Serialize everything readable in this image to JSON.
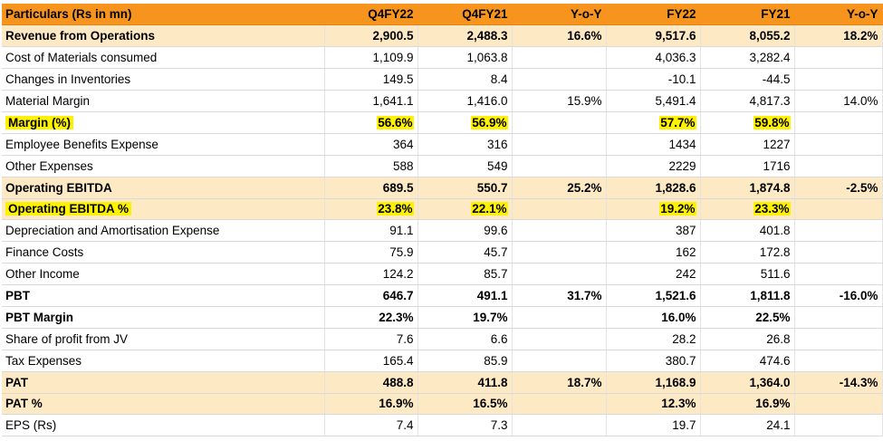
{
  "table": {
    "headers": [
      "Particulars  (Rs in mn)",
      "Q4FY22",
      "Q4FY21",
      "Y-o-Y",
      "FY22",
      "FY21",
      "Y-o-Y"
    ],
    "rows": [
      {
        "label": "Revenue from Operations",
        "cells": [
          "2,900.5",
          "2,488.3",
          "16.6%",
          "9,517.6",
          "8,055.2",
          "18.2%"
        ]
      },
      {
        "label": "Cost of Materials consumed",
        "cells": [
          "1,109.9",
          "1,063.8",
          "",
          "4,036.3",
          "3,282.4",
          ""
        ]
      },
      {
        "label": "Changes in Inventories",
        "cells": [
          "149.5",
          "8.4",
          "",
          "-10.1",
          "-44.5",
          ""
        ]
      },
      {
        "label": "Material Margin",
        "cells": [
          "1,641.1",
          "1,416.0",
          "15.9%",
          "5,491.4",
          "4,817.3",
          "14.0%"
        ]
      },
      {
        "label": "Margin (%)",
        "cells": [
          "56.6%",
          "56.9%",
          "",
          "57.7%",
          "59.8%",
          ""
        ]
      },
      {
        "label": "Employee Benefits Expense",
        "cells": [
          "364",
          "316",
          "",
          "1434",
          "1227",
          ""
        ]
      },
      {
        "label": "Other Expenses",
        "cells": [
          "588",
          "549",
          "",
          "2229",
          "1716",
          ""
        ]
      },
      {
        "label": "Operating EBITDA",
        "cells": [
          "689.5",
          "550.7",
          "25.2%",
          "1,828.6",
          "1,874.8",
          "-2.5%"
        ]
      },
      {
        "label": "Operating EBITDA %",
        "cells": [
          "23.8%",
          "22.1%",
          "",
          "19.2%",
          "23.3%",
          ""
        ]
      },
      {
        "label": "Depreciation and Amortisation Expense",
        "cells": [
          "91.1",
          "99.6",
          "",
          "387",
          "401.8",
          ""
        ]
      },
      {
        "label": "Finance Costs",
        "cells": [
          "75.9",
          "45.7",
          "",
          "162",
          "172.8",
          ""
        ]
      },
      {
        "label": "Other Income",
        "cells": [
          "124.2",
          "85.7",
          "",
          "242",
          "511.6",
          ""
        ]
      },
      {
        "label": "PBT",
        "cells": [
          "646.7",
          "491.1",
          "31.7%",
          "1,521.6",
          "1,811.8",
          "-16.0%"
        ]
      },
      {
        "label": "PBT Margin",
        "cells": [
          "22.3%",
          "19.7%",
          "",
          "16.0%",
          "22.5%",
          ""
        ]
      },
      {
        "label": "Share of profit from JV",
        "cells": [
          "7.6",
          "6.6",
          "",
          "28.2",
          "26.8",
          ""
        ]
      },
      {
        "label": "Tax Expenses",
        "cells": [
          "165.4",
          "85.9",
          "",
          "380.7",
          "474.6",
          ""
        ]
      },
      {
        "label": "PAT",
        "cells": [
          "488.8",
          "411.8",
          "18.7%",
          "1,168.9",
          "1,364.0",
          "-14.3%"
        ]
      },
      {
        "label": "PAT %",
        "cells": [
          "16.9%",
          "16.5%",
          "",
          "12.3%",
          "16.9%",
          ""
        ]
      },
      {
        "label": "EPS (Rs)",
        "cells": [
          "7.4",
          "7.3",
          "",
          "19.7",
          "24.1",
          ""
        ]
      }
    ]
  },
  "colors": {
    "header_bg": "#f7941d",
    "highlight_row_bg": "#fde9c4",
    "yellow_highlight": "#fff200"
  }
}
